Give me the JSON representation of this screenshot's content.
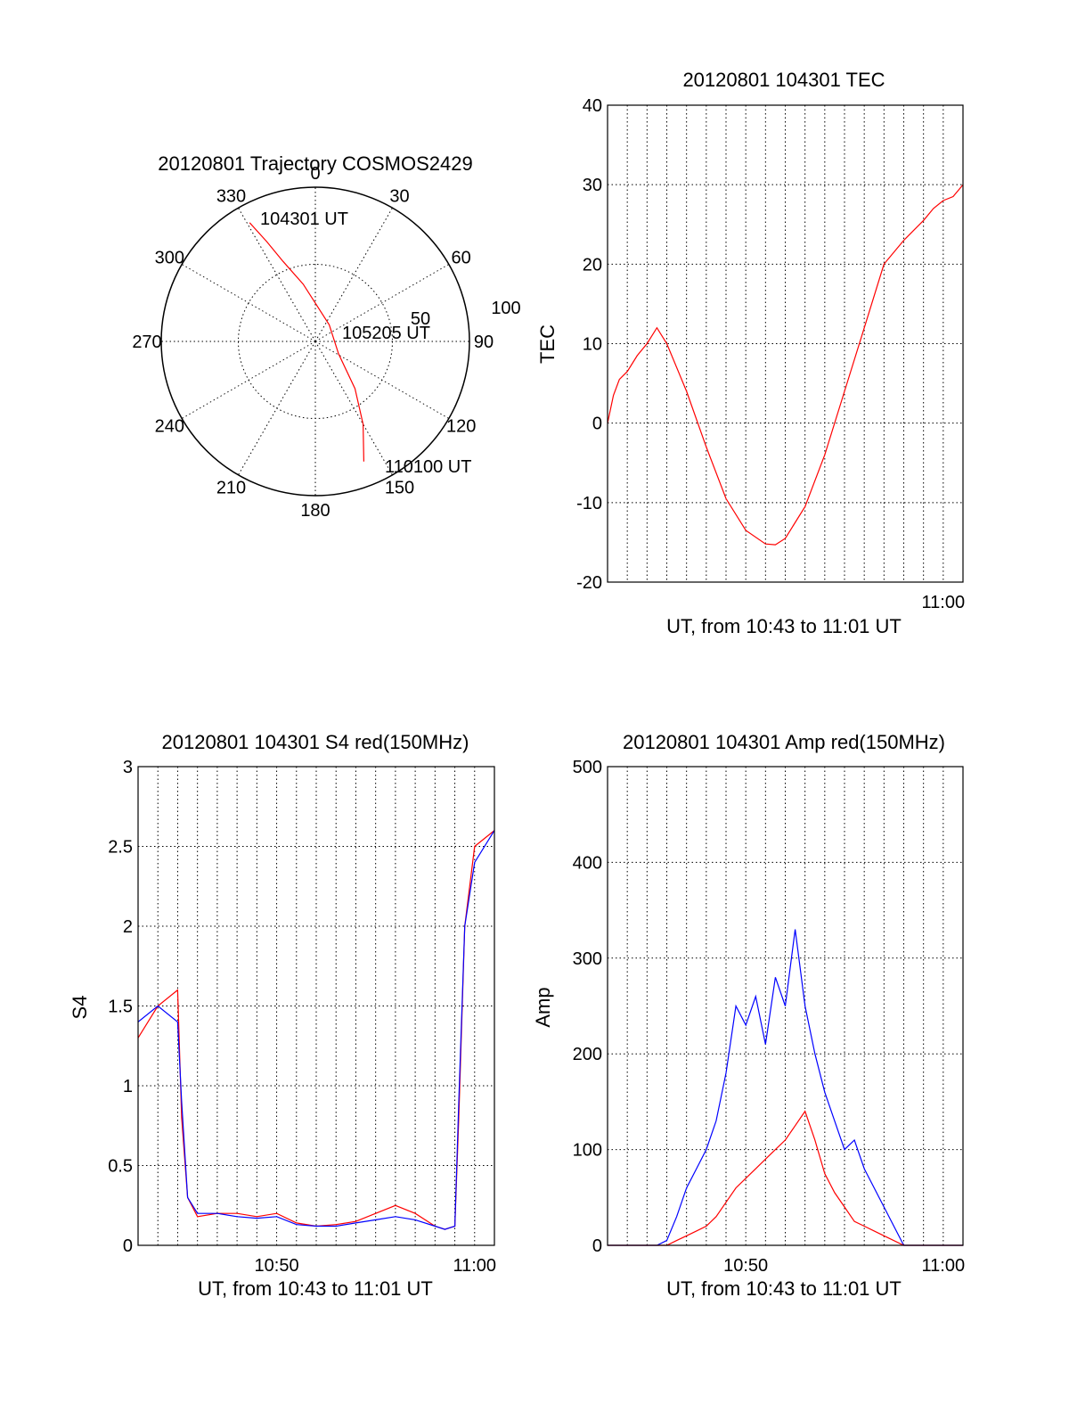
{
  "chart_data": [
    {
      "id": "trajectory",
      "type": "scatter",
      "subtype": "polar",
      "title": "20120801 Trajectory COSMOS2429",
      "azimuth_labels": [
        "0",
        "30",
        "60",
        "90",
        "120",
        "150",
        "180",
        "210",
        "240",
        "270",
        "300",
        "330"
      ],
      "radial_labels": [
        "50",
        "100"
      ],
      "radial_range": [
        0,
        100
      ],
      "grid": true,
      "line_color": "#ff0000",
      "annotations": [
        {
          "text": "104301 UT",
          "azimuth": 331,
          "radius": 88
        },
        {
          "text": "105205 UT",
          "azimuth": 120,
          "radius": 17
        },
        {
          "text": "110100 UT",
          "azimuth": 158,
          "radius": 84
        }
      ],
      "series": [
        {
          "points": [
            [
              331,
              88
            ],
            [
              334,
              72
            ],
            [
              338,
              56
            ],
            [
              348,
              38
            ],
            [
              40,
              14
            ],
            [
              118,
              17
            ],
            [
              140,
              40
            ],
            [
              150,
              62
            ],
            [
              158,
              84
            ]
          ]
        }
      ]
    },
    {
      "id": "tec",
      "type": "line",
      "title": "20120801 104301 TEC",
      "xlabel": "UT, from 10:43 to 11:01 UT",
      "ylabel": "TEC",
      "x_unit": "minutes after 10:43",
      "xlim": [
        0,
        18
      ],
      "ylim": [
        -20,
        40
      ],
      "y_ticks": [
        -20,
        -10,
        0,
        10,
        20,
        30,
        40
      ],
      "x_tick_labels": [
        {
          "at": 17,
          "label": "11:00"
        }
      ],
      "grid": true,
      "line_color": "#ff0000",
      "series": [
        {
          "x": [
            0,
            0.3,
            0.6,
            1.0,
            1.5,
            2.0,
            2.5,
            3.0,
            4.0,
            5.0,
            6.0,
            7.0,
            8.0,
            8.5,
            9.0,
            10.0,
            11.0,
            12.0,
            13.0,
            14.0,
            15.0,
            16.0,
            16.5,
            17.0,
            17.5,
            18.0
          ],
          "y": [
            0,
            3.5,
            5.5,
            6.5,
            8.5,
            10.0,
            12.0,
            10.0,
            4.0,
            -3.0,
            -9.5,
            -13.5,
            -15.2,
            -15.3,
            -14.5,
            -10.5,
            -4.0,
            4.0,
            12.0,
            20.0,
            23.0,
            25.5,
            27.0,
            28.0,
            28.5,
            30.0
          ]
        }
      ]
    },
    {
      "id": "s4",
      "type": "line",
      "title": "20120801 104301 S4 red(150MHz)",
      "xlabel": "UT, from 10:43 to 11:01 UT",
      "ylabel": "S4",
      "xlim": [
        0,
        18
      ],
      "ylim": [
        0,
        3
      ],
      "y_ticks": [
        "0",
        "0.5",
        "1",
        "1.5",
        "2",
        "2.5",
        "3"
      ],
      "x_tick_labels": [
        {
          "at": 7,
          "label": "10:50"
        },
        {
          "at": 17,
          "label": "11:00"
        }
      ],
      "grid": true,
      "series": [
        {
          "name": "red",
          "color": "#ff0000",
          "x": [
            0,
            1,
            2.0,
            2.2,
            2.5,
            3.0,
            4.0,
            5.0,
            6.0,
            7.0,
            8.0,
            9.0,
            10.0,
            11.0,
            12.0,
            13.0,
            14.0,
            15.0,
            15.5,
            16.0,
            16.2,
            16.5,
            17,
            18
          ],
          "y": [
            1.3,
            1.5,
            1.6,
            0.8,
            0.3,
            0.18,
            0.2,
            0.2,
            0.18,
            0.2,
            0.14,
            0.12,
            0.13,
            0.15,
            0.2,
            0.25,
            0.2,
            0.12,
            0.1,
            0.12,
            0.8,
            2.0,
            2.5,
            2.6
          ]
        },
        {
          "name": "blue",
          "color": "#0000ff",
          "x": [
            0,
            1,
            2.0,
            2.2,
            2.5,
            3.0,
            4.0,
            5.0,
            6.0,
            7.0,
            8.0,
            9.0,
            10.0,
            11.0,
            12.0,
            13.0,
            14.0,
            15.0,
            15.5,
            16.0,
            16.2,
            16.5,
            17,
            18
          ],
          "y": [
            1.4,
            1.5,
            1.4,
            0.9,
            0.3,
            0.2,
            0.2,
            0.18,
            0.17,
            0.18,
            0.13,
            0.12,
            0.12,
            0.14,
            0.16,
            0.18,
            0.16,
            0.12,
            0.1,
            0.12,
            0.9,
            2.0,
            2.4,
            2.6
          ]
        }
      ]
    },
    {
      "id": "amp",
      "type": "line",
      "title": "20120801 104301 Amp red(150MHz)",
      "xlabel": "UT, from 10:43 to 11:01 UT",
      "ylabel": "Amp",
      "xlim": [
        0,
        18
      ],
      "ylim": [
        0,
        500
      ],
      "y_ticks": [
        "0",
        "100",
        "200",
        "300",
        "400",
        "500"
      ],
      "x_tick_labels": [
        {
          "at": 7,
          "label": "10:50"
        },
        {
          "at": 17,
          "label": "11:00"
        }
      ],
      "grid": true,
      "series": [
        {
          "name": "blue",
          "color": "#0000ff",
          "x": [
            0,
            2.5,
            3.0,
            3.5,
            4.0,
            4.5,
            5.0,
            5.5,
            6.0,
            6.5,
            7.0,
            7.5,
            8.0,
            8.5,
            9.0,
            9.5,
            10.0,
            10.5,
            11.0,
            11.5,
            12.0,
            12.5,
            13.0,
            13.5,
            14.0,
            15.0,
            18.0
          ],
          "y": [
            0,
            0,
            5,
            30,
            60,
            80,
            100,
            130,
            180,
            250,
            230,
            260,
            210,
            280,
            250,
            330,
            250,
            200,
            160,
            130,
            100,
            110,
            80,
            60,
            40,
            0,
            0
          ]
        },
        {
          "name": "red",
          "color": "#ff0000",
          "x": [
            0,
            3.0,
            3.5,
            4.0,
            4.5,
            5.0,
            5.5,
            6.0,
            6.5,
            7.0,
            7.5,
            8.0,
            8.5,
            9.0,
            9.5,
            10.0,
            10.5,
            11.0,
            11.5,
            12.0,
            12.5,
            13.0,
            13.5,
            14.0,
            15.0,
            18.0
          ],
          "y": [
            0,
            0,
            5,
            10,
            15,
            20,
            30,
            45,
            60,
            70,
            80,
            90,
            100,
            110,
            125,
            140,
            110,
            75,
            55,
            40,
            25,
            20,
            15,
            10,
            0,
            0
          ]
        }
      ]
    }
  ]
}
